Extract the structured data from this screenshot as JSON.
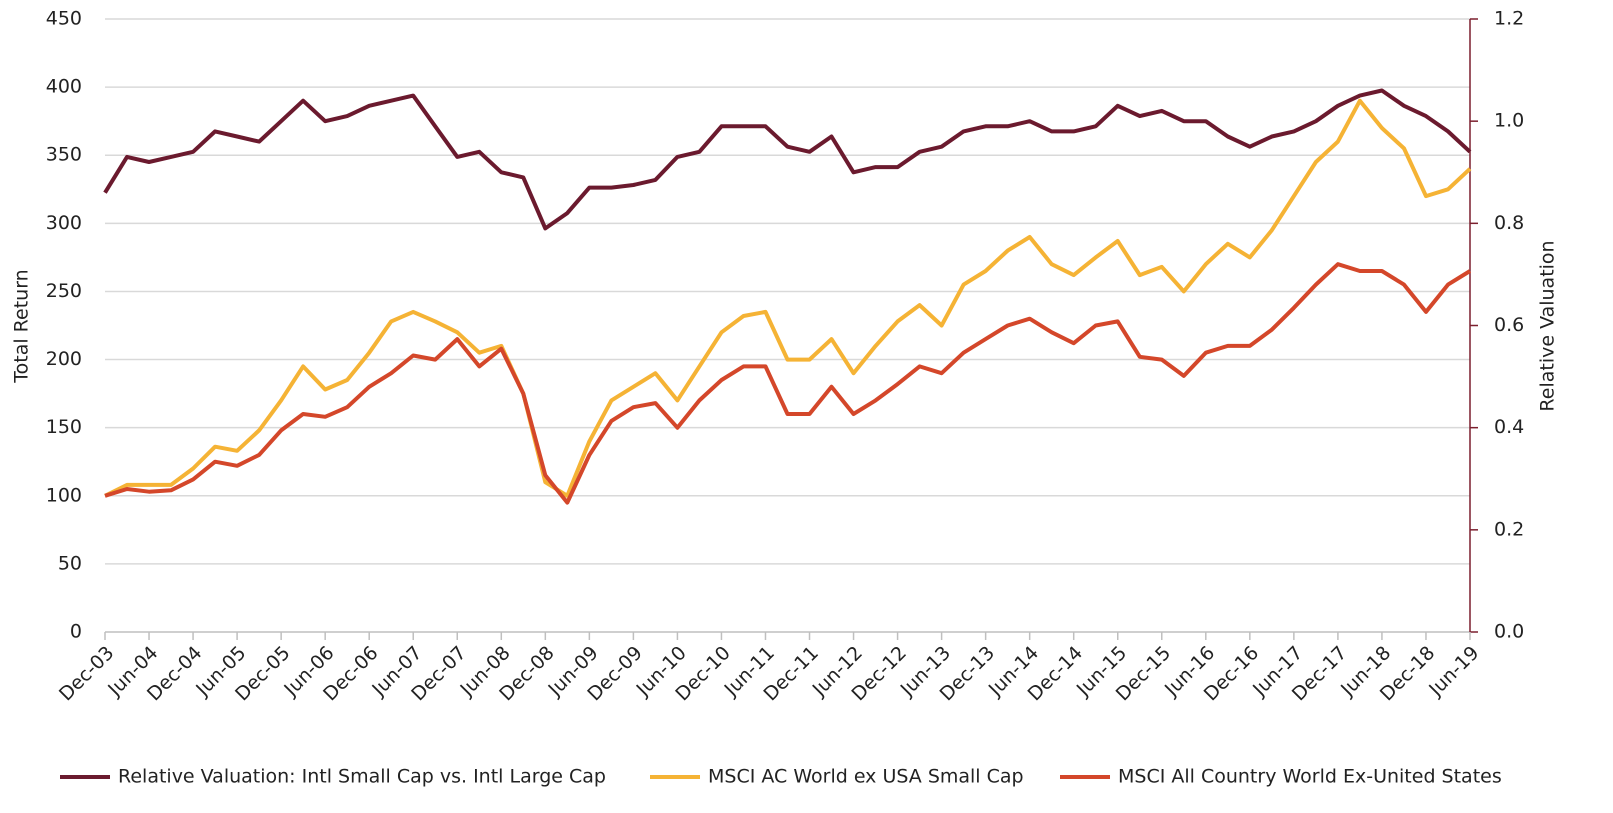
{
  "chart_data": {
    "type": "line",
    "y_label": "Total Return",
    "y2_label": "Relative Valuation",
    "categories": [
      "Dec-03",
      null,
      "Jun-04",
      null,
      "Dec-04",
      null,
      "Jun-05",
      null,
      "Dec-05",
      null,
      "Jun-06",
      null,
      "Dec-06",
      null,
      "Jun-07",
      null,
      "Dec-07",
      null,
      "Jun-08",
      null,
      "Dec-08",
      null,
      "Jun-09",
      null,
      "Dec-09",
      null,
      "Jun-10",
      null,
      "Dec-10",
      null,
      "Jun-11",
      null,
      "Dec-11",
      null,
      "Jun-12",
      null,
      "Dec-12",
      null,
      "Jun-13",
      null,
      "Dec-13",
      null,
      "Jun-14",
      null,
      "Dec-14",
      null,
      "Jun-15",
      null,
      "Dec-15",
      null,
      "Jun-16",
      null,
      "Dec-16",
      null,
      "Jun-17",
      null,
      "Dec-17",
      null,
      "Jun-18",
      null,
      "Dec-18",
      null,
      "Jun-19"
    ],
    "series": [
      {
        "name": "Relative Valuation: Intl Small Cap vs. Intl Large Cap",
        "color": "#6b1a2e",
        "axis": "y2",
        "values": [
          0.86,
          0.93,
          0.92,
          0.93,
          0.94,
          0.98,
          0.97,
          0.96,
          1.0,
          1.04,
          1.0,
          1.01,
          1.03,
          1.04,
          1.05,
          0.99,
          0.93,
          0.94,
          0.9,
          0.89,
          0.79,
          0.82,
          0.87,
          0.87,
          0.875,
          0.885,
          0.93,
          0.94,
          0.99,
          0.99,
          0.99,
          0.95,
          0.94,
          0.97,
          0.9,
          0.91,
          0.91,
          0.94,
          0.95,
          0.98,
          0.99,
          0.99,
          1.0,
          0.98,
          0.98,
          0.99,
          1.03,
          1.01,
          1.02,
          1.0,
          1.0,
          0.97,
          0.95,
          0.97,
          0.98,
          1.0,
          1.03,
          1.05,
          1.06,
          1.03,
          1.01,
          0.98,
          0.94
        ]
      },
      {
        "name": "MSCI AC World ex USA Small Cap",
        "color": "#f5b335",
        "values": [
          100,
          108,
          108,
          108,
          120,
          136,
          133,
          148,
          170,
          195,
          178,
          185,
          205,
          228,
          235,
          228,
          220,
          205,
          210,
          175,
          110,
          100,
          140,
          170,
          180,
          190,
          170,
          195,
          220,
          232,
          235,
          200,
          200,
          215,
          190,
          210,
          228,
          240,
          225,
          255,
          265,
          280,
          290,
          270,
          262,
          275,
          287,
          262,
          268,
          250,
          270,
          285,
          275,
          295,
          320,
          345,
          360,
          390,
          370,
          355,
          320,
          325,
          340
        ]
      },
      {
        "name": "MSCI All Country World Ex-United States",
        "color": "#d4472a",
        "values": [
          100,
          105,
          103,
          104,
          112,
          125,
          122,
          130,
          148,
          160,
          158,
          165,
          180,
          190,
          203,
          200,
          215,
          195,
          208,
          175,
          115,
          95,
          130,
          155,
          165,
          168,
          150,
          170,
          185,
          195,
          195,
          160,
          160,
          180,
          160,
          170,
          182,
          195,
          190,
          205,
          215,
          225,
          230,
          220,
          212,
          225,
          228,
          202,
          200,
          188,
          205,
          210,
          210,
          222,
          238,
          255,
          270,
          265,
          265,
          255,
          235,
          255,
          265
        ]
      }
    ],
    "ylim": [
      0,
      450
    ],
    "yticks": [
      0,
      50,
      100,
      150,
      200,
      250,
      300,
      350,
      400,
      450
    ],
    "y2lim": [
      0,
      1.2
    ],
    "y2ticks": [
      {
        "value": 0,
        "label": "0.0"
      },
      0.2,
      0.4,
      0.6,
      0.8,
      {
        "value": 1,
        "label": "1.0"
      },
      1.2
    ],
    "grid": true,
    "legend": "bottom"
  }
}
